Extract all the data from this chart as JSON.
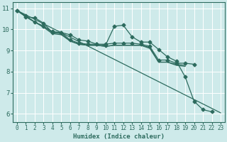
{
  "title": "",
  "xlabel": "Humidex (Indice chaleur)",
  "ylabel": "",
  "xlim": [
    -0.5,
    23.5
  ],
  "ylim": [
    5.6,
    11.3
  ],
  "xticks": [
    0,
    1,
    2,
    3,
    4,
    5,
    6,
    7,
    8,
    9,
    10,
    11,
    12,
    13,
    14,
    15,
    16,
    17,
    18,
    19,
    20,
    21,
    22,
    23
  ],
  "yticks": [
    6,
    7,
    8,
    9,
    10,
    11
  ],
  "bg_color": "#ceeaea",
  "grid_color": "#ffffff",
  "line_color": "#2d6b5e",
  "lines": [
    {
      "x": [
        0,
        1,
        2,
        3,
        4,
        5,
        6,
        7,
        8,
        9,
        10,
        11,
        12,
        13,
        14,
        15,
        16,
        17,
        18,
        19,
        20,
        21,
        22
      ],
      "y": [
        10.9,
        10.6,
        10.55,
        10.3,
        9.85,
        9.85,
        9.75,
        9.5,
        9.45,
        9.3,
        9.25,
        10.15,
        10.2,
        9.65,
        9.4,
        9.4,
        9.05,
        8.7,
        8.5,
        7.75,
        6.6,
        6.2,
        6.1
      ],
      "marker": true
    },
    {
      "x": [
        0,
        1,
        2,
        3,
        4,
        5,
        6,
        7,
        8,
        9,
        10,
        11,
        12,
        13,
        14,
        15,
        16,
        17,
        18,
        19,
        20
      ],
      "y": [
        10.9,
        10.65,
        10.35,
        10.15,
        9.9,
        9.85,
        9.5,
        9.35,
        9.3,
        9.3,
        9.3,
        9.35,
        9.35,
        9.35,
        9.3,
        9.2,
        8.55,
        8.55,
        8.4,
        8.4,
        8.35
      ],
      "marker": true
    },
    {
      "x": [
        0,
        1,
        2,
        3,
        4,
        5,
        6,
        7,
        8,
        9,
        10,
        11,
        12,
        13,
        14,
        15,
        16,
        17,
        18,
        19
      ],
      "y": [
        10.9,
        10.6,
        10.35,
        10.15,
        9.85,
        9.8,
        9.45,
        9.3,
        9.25,
        9.25,
        9.2,
        9.25,
        9.25,
        9.25,
        9.25,
        9.15,
        8.45,
        8.45,
        8.35,
        8.3
      ],
      "marker": false
    },
    {
      "x": [
        0,
        23
      ],
      "y": [
        10.9,
        6.05
      ],
      "marker": false
    },
    {
      "x": [
        0,
        1,
        2,
        3,
        4,
        5,
        6,
        7,
        8,
        9,
        10,
        11,
        12,
        13,
        14,
        15,
        16,
        17,
        18,
        19
      ],
      "y": [
        10.9,
        10.6,
        10.35,
        10.1,
        9.8,
        9.75,
        9.45,
        9.3,
        9.25,
        9.25,
        9.2,
        9.25,
        9.25,
        9.25,
        9.25,
        9.1,
        8.45,
        8.45,
        8.3,
        8.25
      ],
      "marker": false
    }
  ],
  "marker_size": 2.5,
  "line_width": 0.9,
  "xlabel_fontsize": 6.5,
  "tick_fontsize": 6.0
}
